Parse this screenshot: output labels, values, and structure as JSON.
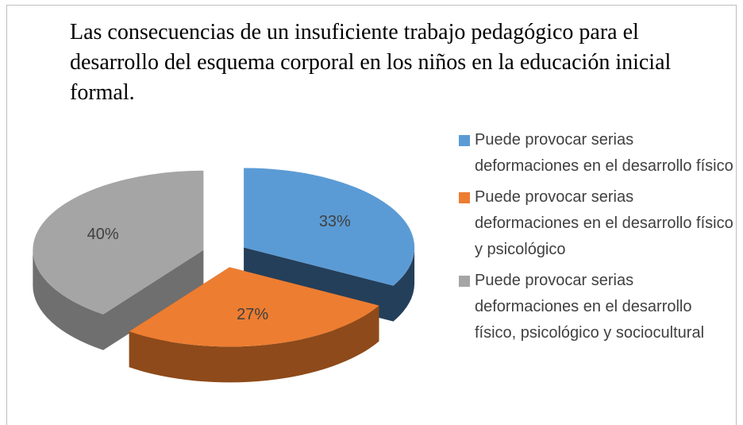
{
  "chart_data": {
    "type": "pie3d",
    "title": "Las consecuencias de un insuficiente trabajo pedagógico para el desarrollo del esquema corporal en los niños en la educación inicial formal.",
    "categories": [
      "Puede provocar serias deformaciones en el desarrollo físico",
      "Puede provocar serias deformaciones en el desarrollo físico y psicológico",
      "Puede provocar serias deformaciones en el desarrollo físico, psicológico y sociocultural"
    ],
    "values": [
      33,
      27,
      40
    ],
    "value_labels": [
      "33%",
      "27%",
      "40%"
    ],
    "colors": [
      "#5b9bd5",
      "#ed7d31",
      "#a5a5a5"
    ],
    "side_colors": [
      "#243f5a",
      "#8e4a1a",
      "#6f6f6f"
    ],
    "legend": "right"
  }
}
